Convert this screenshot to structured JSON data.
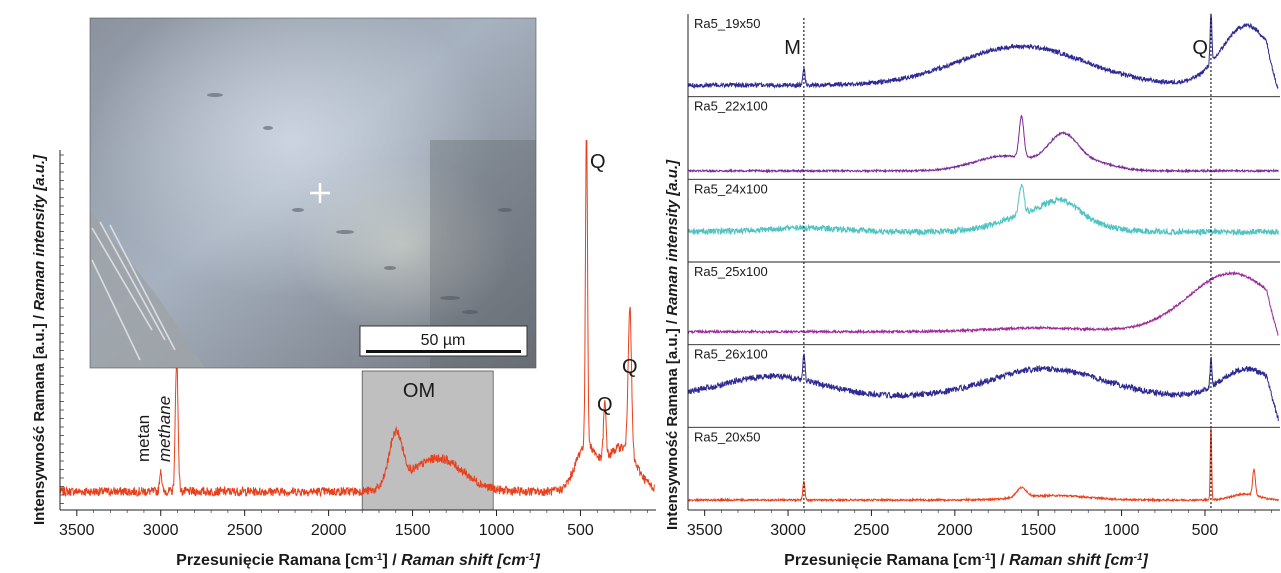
{
  "chart_data": [
    {
      "type": "line",
      "panel": "left",
      "xlabel": "Przesunięcie Ramana [cm⁻¹] / Raman shift [cm⁻¹]",
      "ylabel": "Intensywność Ramana [a.u.] / Raman intensity [a.u.]",
      "xlim": [
        3600,
        50
      ],
      "x_ticks": [
        3500,
        3000,
        2500,
        2000,
        1500,
        1000,
        500
      ],
      "y_ticks": "unlabeled",
      "grid": false,
      "legend": "none",
      "series": [
        {
          "color": "#e8401c",
          "baseline": 0.05,
          "noise": 0.012,
          "features": [
            {
              "center": 3000,
              "width": 6,
              "height": 0.06
            },
            {
              "center": 2905,
              "width": 8,
              "height": 0.36
            },
            {
              "center": 1600,
              "width": 40,
              "height": 0.14
            },
            {
              "center": 1350,
              "width": 150,
              "height": 0.09
            },
            {
              "center": 464,
              "width": 6,
              "height": 0.88
            },
            {
              "center": 470,
              "width": 60,
              "height": 0.12
            },
            {
              "center": 355,
              "width": 8,
              "height": 0.15
            },
            {
              "center": 206,
              "width": 10,
              "height": 0.4
            },
            {
              "center": 260,
              "width": 90,
              "height": 0.12
            }
          ]
        }
      ],
      "annotations": {
        "methane_pl": "metan",
        "methane_en": "methane",
        "om": "OM",
        "q1": "Q",
        "q2": "Q",
        "q3": "Q",
        "om_region": [
          1800,
          1020
        ]
      },
      "inset": {
        "description_scale": "50 µm"
      }
    },
    {
      "type": "line",
      "panel": "right",
      "xlabel": "Przesunięcie Ramana [cm⁻¹] / Raman shift [cm⁻¹]",
      "ylabel": "Intensywność Ramana [a.u.] / Raman intensity [a.u.]",
      "xlim": [
        3600,
        50
      ],
      "x_ticks": [
        3500,
        3000,
        2500,
        2000,
        1500,
        1000,
        500
      ],
      "grid": false,
      "legend": "none",
      "markers": [
        {
          "label": "M",
          "x": 2905
        },
        {
          "label": "Q",
          "x": 464
        }
      ],
      "series": [
        {
          "name": "Ra5_19x50",
          "color": "#2e2a94",
          "baseline": 0.1,
          "noise": 0.03,
          "features": [
            {
              "center": 2905,
              "width": 6,
              "height": 0.25
            },
            {
              "center": 1600,
              "width": 380,
              "height": 0.52
            },
            {
              "center": 464,
              "width": 5,
              "height": 0.7
            },
            {
              "center": 250,
              "width": 150,
              "height": 0.8
            }
          ],
          "tail_drop": true
        },
        {
          "name": "Ra5_22x100",
          "color": "#7b2a98",
          "baseline": 0.06,
          "noise": 0.012,
          "features": [
            {
              "center": 1600,
              "width": 14,
              "height": 0.55
            },
            {
              "center": 1700,
              "width": 180,
              "height": 0.2
            },
            {
              "center": 1350,
              "width": 90,
              "height": 0.45
            },
            {
              "center": 1150,
              "width": 120,
              "height": 0.1
            }
          ]
        },
        {
          "name": "Ra5_24x100",
          "color": "#4fc3c3",
          "baseline": 0.35,
          "noise": 0.04,
          "features": [
            {
              "center": 2900,
              "width": 250,
              "height": 0.05
            },
            {
              "center": 1600,
              "width": 14,
              "height": 0.4
            },
            {
              "center": 1450,
              "width": 220,
              "height": 0.3
            },
            {
              "center": 1350,
              "width": 90,
              "height": 0.15
            }
          ]
        },
        {
          "name": "Ra5_25x100",
          "color": "#9c2a98",
          "baseline": 0.12,
          "noise": 0.015,
          "features": [
            {
              "center": 1500,
              "width": 300,
              "height": 0.05
            },
            {
              "center": 340,
              "width": 260,
              "height": 0.78
            }
          ],
          "tail_drop": true
        },
        {
          "name": "Ra5_26x100",
          "color": "#2e2a94",
          "baseline": 0.35,
          "noise": 0.04,
          "features": [
            {
              "center": 2905,
              "width": 6,
              "height": 0.35
            },
            {
              "center": 3100,
              "width": 300,
              "height": 0.28
            },
            {
              "center": 1450,
              "width": 340,
              "height": 0.38
            },
            {
              "center": 464,
              "width": 5,
              "height": 0.4
            },
            {
              "center": 250,
              "width": 150,
              "height": 0.38
            }
          ],
          "tail_drop": true
        },
        {
          "name": "Ra5_20x50",
          "color": "#e8401c",
          "baseline": 0.08,
          "noise": 0.012,
          "features": [
            {
              "center": 2905,
              "width": 6,
              "height": 0.25
            },
            {
              "center": 1600,
              "width": 30,
              "height": 0.13
            },
            {
              "center": 1400,
              "width": 200,
              "height": 0.06
            },
            {
              "center": 464,
              "width": 4,
              "height": 1.0
            },
            {
              "center": 206,
              "width": 8,
              "height": 0.35
            },
            {
              "center": 260,
              "width": 80,
              "height": 0.08
            }
          ]
        }
      ]
    }
  ]
}
